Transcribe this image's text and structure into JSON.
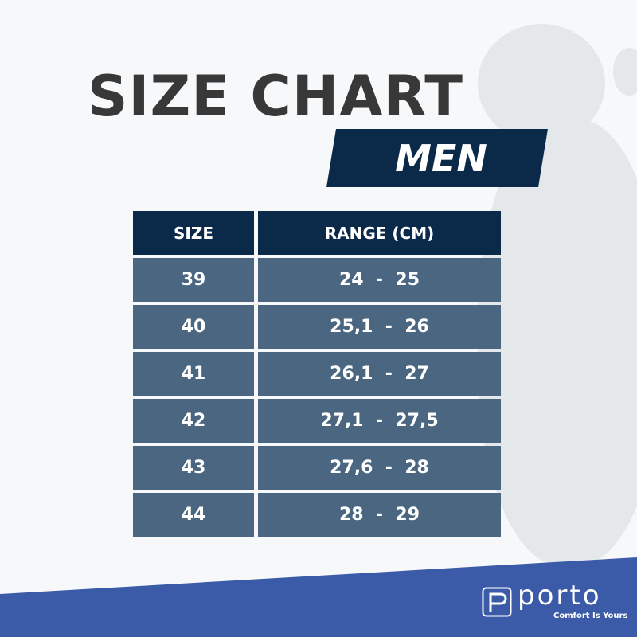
{
  "title": "SIZE CHART",
  "subtitle": "MEN",
  "table": {
    "headers": [
      "SIZE",
      "RANGE (CM)"
    ],
    "rows": [
      {
        "size": "39",
        "range": "24  -  25"
      },
      {
        "size": "40",
        "range": "25,1  -  26"
      },
      {
        "size": "41",
        "range": "26,1  -  27"
      },
      {
        "size": "42",
        "range": "27,1  -  27,5"
      },
      {
        "size": "43",
        "range": "27,6  -  28"
      },
      {
        "size": "44",
        "range": "28  -  29"
      }
    ]
  },
  "brand": {
    "name": "porto",
    "tagline": "Comfort Is Yours",
    "logo_letter": "p"
  },
  "colors": {
    "header": "#0b2a4a",
    "row": "#4a6681",
    "band": "#3b5ba8",
    "title": "#383838"
  }
}
